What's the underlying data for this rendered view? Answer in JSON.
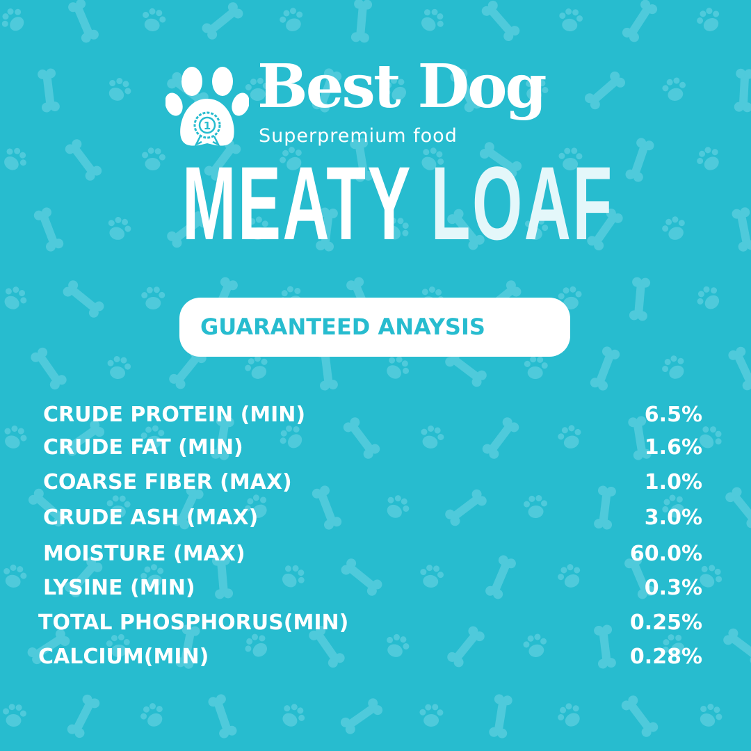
{
  "colors": {
    "background": "#27bccf",
    "pattern": "#4fcadb",
    "text": "#ffffff",
    "pill_text": "#27bccf"
  },
  "logo": {
    "brand": "Best Dog",
    "tagline": "Superpremium food",
    "badge_number": "1"
  },
  "product": {
    "title_word1": "MEATY",
    "title_word2": "LOAF"
  },
  "section": {
    "heading": "GUARANTEED ANAYSIS"
  },
  "analysis": [
    {
      "label": "CRUDE PROTEIN (MIN)",
      "value": "6.5%"
    },
    {
      "label": "CRUDE FAT (MIN)",
      "value": "1.6%"
    },
    {
      "label": "COARSE FIBER (MAX)",
      "value": "1.0%"
    },
    {
      "label": "CRUDE ASH (MAX)",
      "value": "3.0%"
    },
    {
      "label": "MOISTURE (MAX)",
      "value": "60.0%"
    },
    {
      "label": "LYSINE (MIN)",
      "value": "0.3%"
    },
    {
      "label": "TOTAL PHOSPHORUS(MIN)",
      "value": "0.25%"
    },
    {
      "label": "CALCIUM(MIN)",
      "value": "0.28%"
    }
  ]
}
